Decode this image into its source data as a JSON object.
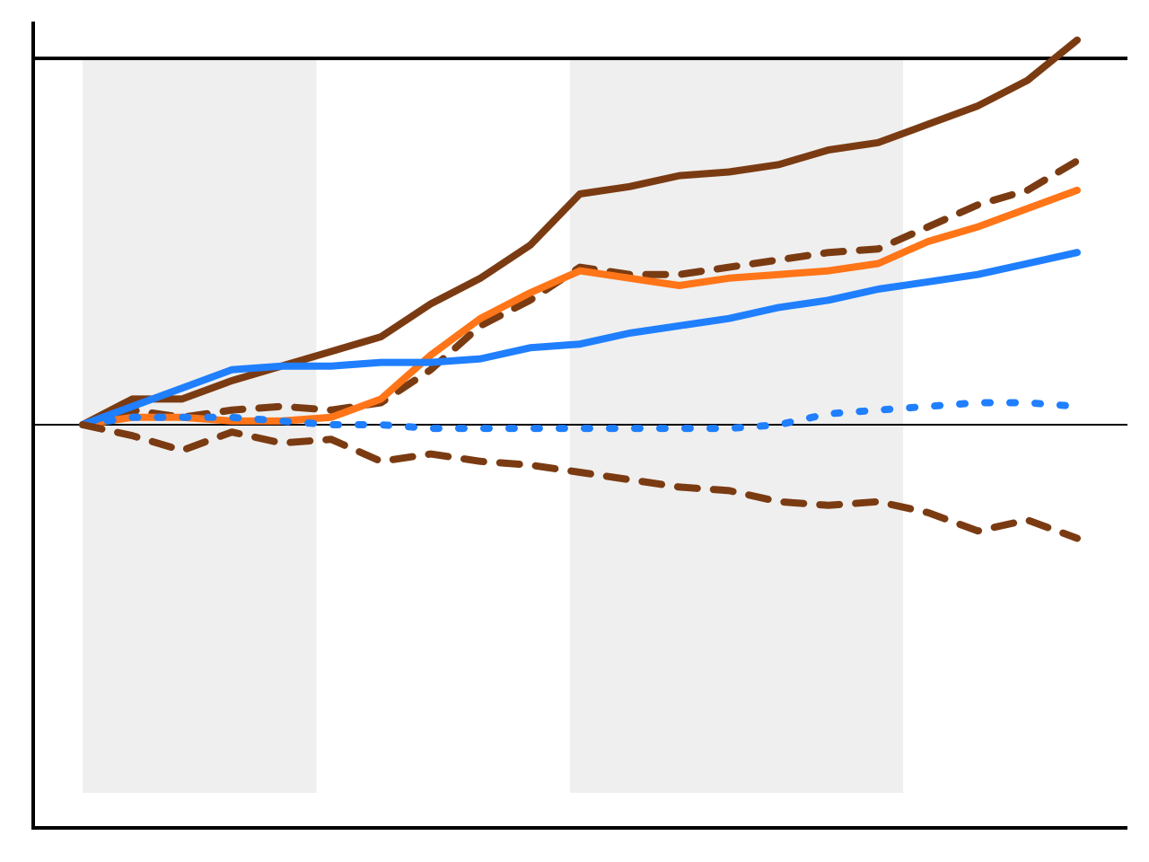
{
  "chart_data": {
    "type": "line",
    "title": "",
    "xlabel": "",
    "ylabel": "",
    "xlim": [
      0,
      100
    ],
    "ylim": [
      -1.0,
      1.0
    ],
    "grid": false,
    "legend": "none",
    "reference_lines": [
      {
        "name": "zero-line",
        "y": 0.0,
        "color": "#000000"
      },
      {
        "name": "top-line",
        "y": 1.0,
        "color": "#000000"
      }
    ],
    "shaded_regions": [
      {
        "name": "shaded-region-1",
        "x": [
          0,
          23.5
        ],
        "color": "#efefef"
      },
      {
        "name": "shaded-region-2",
        "x": [
          49,
          82.5
        ],
        "color": "#efefef"
      }
    ],
    "series": [
      {
        "color": "#7b3b12",
        "style": "solid",
        "x": [
          0,
          5,
          10,
          15,
          20,
          25,
          30,
          35,
          40,
          45,
          50,
          55,
          60,
          65,
          70,
          75,
          80,
          85,
          90,
          95,
          100
        ],
        "y": [
          0.0,
          0.07,
          0.07,
          0.12,
          0.16,
          0.2,
          0.24,
          0.33,
          0.4,
          0.49,
          0.63,
          0.65,
          0.68,
          0.69,
          0.71,
          0.75,
          0.77,
          0.82,
          0.87,
          0.94,
          1.05
        ]
      },
      {
        "color": "#7b3b12",
        "style": "dashed",
        "x": [
          0,
          5,
          10,
          15,
          20,
          25,
          30,
          35,
          40,
          45,
          50,
          55,
          60,
          65,
          70,
          75,
          80,
          85,
          90,
          95,
          100
        ],
        "y": [
          0.0,
          0.04,
          0.02,
          0.04,
          0.05,
          0.04,
          0.06,
          0.15,
          0.27,
          0.34,
          0.43,
          0.41,
          0.41,
          0.43,
          0.45,
          0.47,
          0.48,
          0.54,
          0.6,
          0.64,
          0.72
        ]
      },
      {
        "color": "#ff7518",
        "style": "solid",
        "x": [
          0,
          5,
          10,
          15,
          20,
          25,
          30,
          35,
          40,
          45,
          50,
          55,
          60,
          65,
          70,
          75,
          80,
          85,
          90,
          95,
          100
        ],
        "y": [
          0.0,
          0.02,
          0.02,
          0.01,
          0.01,
          0.02,
          0.07,
          0.19,
          0.29,
          0.36,
          0.42,
          0.4,
          0.38,
          0.4,
          0.41,
          0.42,
          0.44,
          0.5,
          0.54,
          0.59,
          0.64
        ]
      },
      {
        "color": "#1f7fff",
        "style": "solid",
        "x": [
          0,
          5,
          10,
          15,
          20,
          25,
          30,
          35,
          40,
          45,
          50,
          55,
          60,
          65,
          70,
          75,
          80,
          85,
          90,
          95,
          100
        ],
        "y": [
          0.0,
          0.05,
          0.1,
          0.15,
          0.16,
          0.16,
          0.17,
          0.17,
          0.18,
          0.21,
          0.22,
          0.25,
          0.27,
          0.29,
          0.32,
          0.34,
          0.37,
          0.39,
          0.41,
          0.44,
          0.47
        ]
      },
      {
        "color": "#1f7fff",
        "style": "dotted",
        "x": [
          0,
          5,
          10,
          15,
          20,
          25,
          30,
          35,
          40,
          45,
          50,
          55,
          60,
          65,
          70,
          75,
          80,
          85,
          90,
          95,
          100
        ],
        "y": [
          0.0,
          0.02,
          0.02,
          0.02,
          0.01,
          0.0,
          0.0,
          -0.01,
          -0.01,
          -0.01,
          -0.01,
          -0.01,
          -0.01,
          -0.01,
          0.0,
          0.03,
          0.04,
          0.05,
          0.06,
          0.06,
          0.05
        ]
      },
      {
        "color": "#7b3b12",
        "style": "dashed",
        "x": [
          0,
          5,
          10,
          15,
          20,
          25,
          30,
          35,
          40,
          45,
          50,
          55,
          60,
          65,
          70,
          75,
          80,
          85,
          90,
          95,
          100
        ],
        "y": [
          0.0,
          -0.03,
          -0.07,
          -0.02,
          -0.05,
          -0.04,
          -0.1,
          -0.08,
          -0.1,
          -0.11,
          -0.13,
          -0.15,
          -0.17,
          -0.18,
          -0.21,
          -0.22,
          -0.21,
          -0.24,
          -0.29,
          -0.26,
          -0.31
        ]
      }
    ]
  }
}
